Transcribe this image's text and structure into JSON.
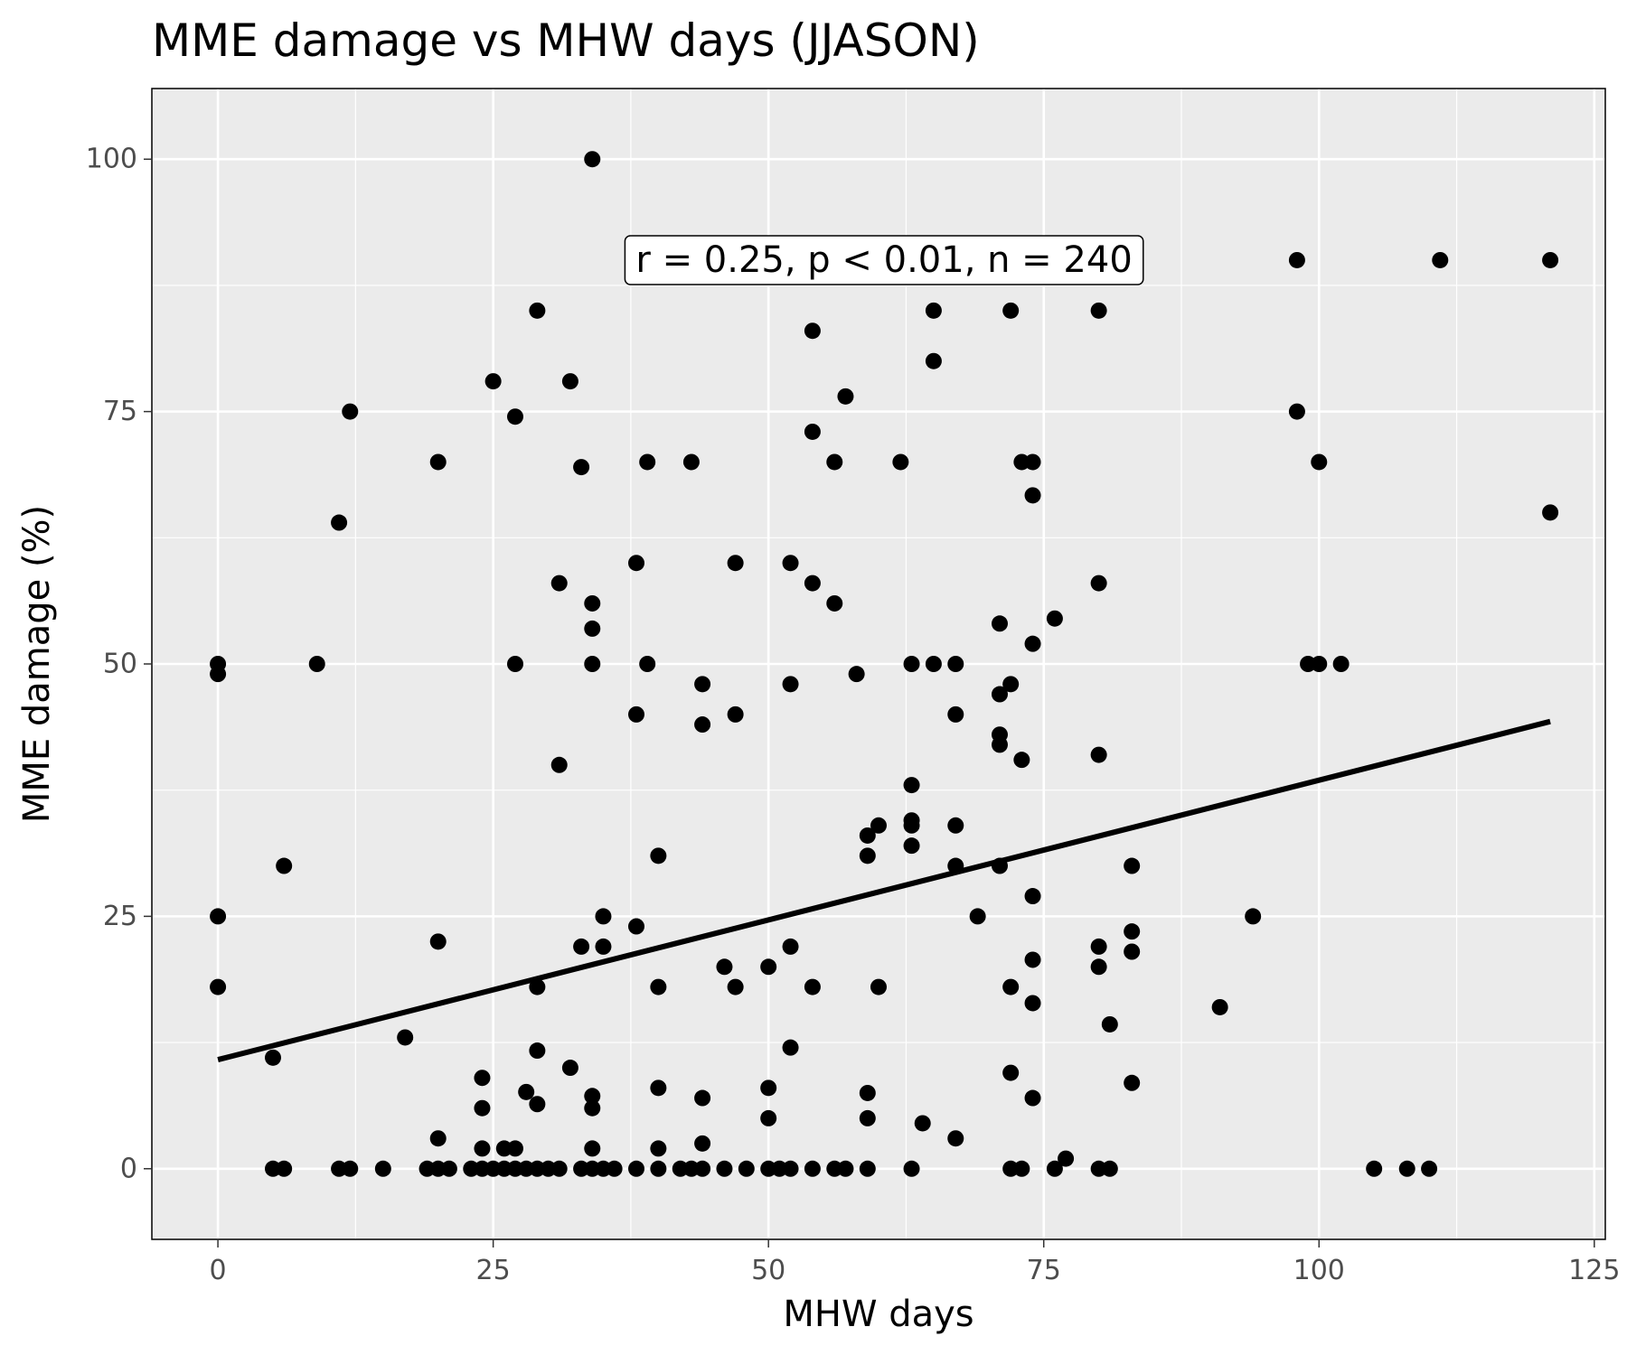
{
  "chart_data": {
    "type": "scatter",
    "title": "MME damage vs MHW days (JJASON)",
    "xlabel": "MHW days",
    "ylabel": "MME damage (%)",
    "xlim": [
      -6,
      126
    ],
    "ylim": [
      -7,
      107
    ],
    "x_ticks": [
      0,
      25,
      50,
      75,
      100,
      125
    ],
    "y_ticks": [
      0,
      25,
      50,
      75,
      100
    ],
    "x_tick_labels": [
      "0",
      "25",
      "50",
      "75",
      "100",
      "125"
    ],
    "y_tick_labels": [
      "0",
      "25",
      "50",
      "75",
      "100"
    ],
    "grid": true,
    "background": "#ebebeb",
    "point_color": "#000000",
    "annotation": {
      "text": "r = 0.25, p < 0.01, n = 240",
      "x": 60.5,
      "y": 90
    },
    "trend_line": {
      "x": [
        0,
        121
      ],
      "y": [
        10.8,
        44.3
      ]
    },
    "points": [
      [
        0,
        50
      ],
      [
        0,
        49
      ],
      [
        0,
        25
      ],
      [
        0,
        18
      ],
      [
        5,
        11
      ],
      [
        5,
        0
      ],
      [
        6,
        0
      ],
      [
        6,
        30
      ],
      [
        9,
        50
      ],
      [
        11,
        64
      ],
      [
        11,
        0
      ],
      [
        12,
        75
      ],
      [
        12,
        0
      ],
      [
        15,
        0
      ],
      [
        17,
        13
      ],
      [
        19,
        0
      ],
      [
        20,
        70
      ],
      [
        20,
        22.5
      ],
      [
        20,
        3
      ],
      [
        20,
        0
      ],
      [
        21,
        0
      ],
      [
        23,
        0
      ],
      [
        24,
        9
      ],
      [
        24,
        6
      ],
      [
        24,
        2
      ],
      [
        24,
        0
      ],
      [
        25,
        78
      ],
      [
        25,
        0
      ],
      [
        26,
        2
      ],
      [
        26,
        0
      ],
      [
        27,
        74.5
      ],
      [
        27,
        50
      ],
      [
        27,
        2
      ],
      [
        27,
        0
      ],
      [
        28,
        7.6
      ],
      [
        28,
        0
      ],
      [
        29,
        85
      ],
      [
        29,
        18
      ],
      [
        29,
        11.7
      ],
      [
        29,
        6.4
      ],
      [
        29,
        0
      ],
      [
        30,
        0
      ],
      [
        31,
        58
      ],
      [
        31,
        40
      ],
      [
        31,
        0
      ],
      [
        32,
        78
      ],
      [
        32,
        10
      ],
      [
        33,
        69.5
      ],
      [
        33,
        22
      ],
      [
        33,
        0
      ],
      [
        34,
        100
      ],
      [
        34,
        56
      ],
      [
        34,
        53.5
      ],
      [
        34,
        50
      ],
      [
        34,
        7.2
      ],
      [
        34,
        6
      ],
      [
        34,
        2
      ],
      [
        34,
        0
      ],
      [
        35,
        25
      ],
      [
        35,
        22
      ],
      [
        35,
        0
      ],
      [
        36,
        0
      ],
      [
        38,
        60
      ],
      [
        38,
        45
      ],
      [
        38,
        24
      ],
      [
        38,
        0
      ],
      [
        39,
        70
      ],
      [
        39,
        50
      ],
      [
        40,
        31
      ],
      [
        40,
        18
      ],
      [
        40,
        8
      ],
      [
        40,
        2
      ],
      [
        40,
        0
      ],
      [
        42,
        0
      ],
      [
        43,
        70
      ],
      [
        43,
        0
      ],
      [
        44,
        48
      ],
      [
        44,
        44
      ],
      [
        44,
        7
      ],
      [
        44,
        2.5
      ],
      [
        44,
        0
      ],
      [
        46,
        20
      ],
      [
        46,
        0
      ],
      [
        47,
        60
      ],
      [
        47,
        45
      ],
      [
        47,
        18
      ],
      [
        48,
        0
      ],
      [
        50,
        20
      ],
      [
        50,
        8
      ],
      [
        50,
        5
      ],
      [
        50,
        0
      ],
      [
        51,
        0
      ],
      [
        52,
        60
      ],
      [
        52,
        48
      ],
      [
        52,
        22
      ],
      [
        52,
        12
      ],
      [
        52,
        0
      ],
      [
        54,
        83
      ],
      [
        54,
        73
      ],
      [
        54,
        58
      ],
      [
        54,
        18
      ],
      [
        54,
        0
      ],
      [
        56,
        70
      ],
      [
        56,
        56
      ],
      [
        56,
        0
      ],
      [
        57,
        90
      ],
      [
        57,
        76.5
      ],
      [
        57,
        0
      ],
      [
        58,
        49
      ],
      [
        59,
        33
      ],
      [
        59,
        31
      ],
      [
        59,
        7.5
      ],
      [
        59,
        5
      ],
      [
        59,
        0
      ],
      [
        60,
        34
      ],
      [
        60,
        18
      ],
      [
        62,
        70
      ],
      [
        63,
        50
      ],
      [
        63,
        38
      ],
      [
        63,
        34.5
      ],
      [
        63,
        34
      ],
      [
        63,
        32
      ],
      [
        63,
        0
      ],
      [
        64,
        4.5
      ],
      [
        65,
        85
      ],
      [
        65,
        80
      ],
      [
        65,
        50
      ],
      [
        67,
        50
      ],
      [
        67,
        45
      ],
      [
        67,
        34
      ],
      [
        67,
        30
      ],
      [
        67,
        3
      ],
      [
        69,
        25
      ],
      [
        71,
        54
      ],
      [
        71,
        47
      ],
      [
        71,
        43
      ],
      [
        71,
        42
      ],
      [
        71,
        30
      ],
      [
        72,
        85
      ],
      [
        72,
        48
      ],
      [
        72,
        18
      ],
      [
        72,
        9.5
      ],
      [
        72,
        0
      ],
      [
        73,
        70
      ],
      [
        73,
        40.5
      ],
      [
        73,
        0
      ],
      [
        74,
        70
      ],
      [
        74,
        66.7
      ],
      [
        74,
        52
      ],
      [
        74,
        27
      ],
      [
        74,
        20.7
      ],
      [
        74,
        16.4
      ],
      [
        74,
        7
      ],
      [
        76,
        54.5
      ],
      [
        76,
        0
      ],
      [
        77,
        1
      ],
      [
        80,
        85
      ],
      [
        80,
        58
      ],
      [
        80,
        41
      ],
      [
        80,
        22
      ],
      [
        80,
        20
      ],
      [
        80,
        0
      ],
      [
        81,
        14.3
      ],
      [
        81,
        0
      ],
      [
        83,
        30
      ],
      [
        83,
        23.5
      ],
      [
        83,
        21.5
      ],
      [
        83,
        8.5
      ],
      [
        91,
        16
      ],
      [
        94,
        25
      ],
      [
        98,
        90
      ],
      [
        98,
        75
      ],
      [
        99,
        50
      ],
      [
        100,
        70
      ],
      [
        100,
        50
      ],
      [
        102,
        50
      ],
      [
        105,
        0
      ],
      [
        108,
        0
      ],
      [
        110,
        0
      ],
      [
        111,
        90
      ],
      [
        121,
        90
      ],
      [
        121,
        65
      ]
    ]
  }
}
